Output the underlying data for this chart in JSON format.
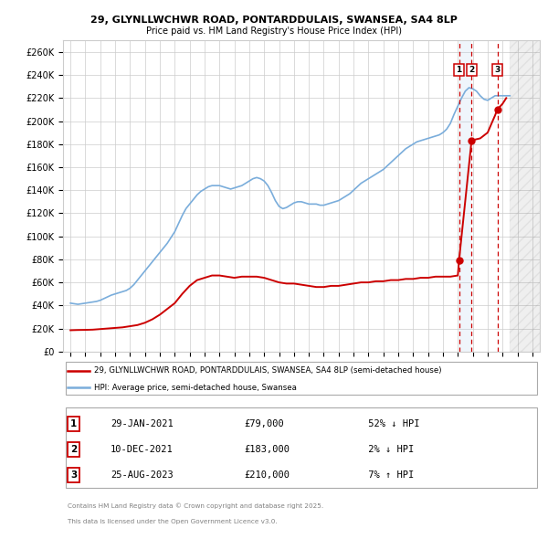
{
  "title_line1": "29, GLYNLLWCHWR ROAD, PONTARDDULAIS, SWANSEA, SA4 8LP",
  "title_line2": "Price paid vs. HM Land Registry's House Price Index (HPI)",
  "ylim": [
    0,
    270000
  ],
  "yticks": [
    0,
    20000,
    40000,
    60000,
    80000,
    100000,
    120000,
    140000,
    160000,
    180000,
    200000,
    220000,
    240000,
    260000
  ],
  "ytick_labels": [
    "£0",
    "£20K",
    "£40K",
    "£60K",
    "£80K",
    "£100K",
    "£120K",
    "£140K",
    "£160K",
    "£180K",
    "£200K",
    "£220K",
    "£240K",
    "£260K"
  ],
  "xmin": 1994.5,
  "xmax": 2026.5,
  "hpi_color": "#7aaddb",
  "price_color": "#cc0000",
  "vline_color": "#cc0000",
  "transactions": [
    {
      "date": "29-JAN-2021",
      "price": 79000,
      "x": 2021.08,
      "pct": "52%",
      "dir": "↓",
      "label": "1"
    },
    {
      "date": "10-DEC-2021",
      "price": 183000,
      "x": 2021.92,
      "pct": "2%",
      "dir": "↓",
      "label": "2"
    },
    {
      "date": "25-AUG-2023",
      "price": 210000,
      "x": 2023.65,
      "pct": "7%",
      "dir": "↑",
      "label": "3"
    }
  ],
  "legend_line1": "29, GLYNLLWCHWR ROAD, PONTARDDULAIS, SWANSEA, SA4 8LP (semi-detached house)",
  "legend_line2": "HPI: Average price, semi-detached house, Swansea",
  "footer1": "Contains HM Land Registry data © Crown copyright and database right 2025.",
  "footer2": "This data is licensed under the Open Government Licence v3.0.",
  "hpi_data": {
    "years": [
      1995.0,
      1995.25,
      1995.5,
      1995.75,
      1996.0,
      1996.25,
      1996.5,
      1996.75,
      1997.0,
      1997.25,
      1997.5,
      1997.75,
      1998.0,
      1998.25,
      1998.5,
      1998.75,
      1999.0,
      1999.25,
      1999.5,
      1999.75,
      2000.0,
      2000.25,
      2000.5,
      2000.75,
      2001.0,
      2001.25,
      2001.5,
      2001.75,
      2002.0,
      2002.25,
      2002.5,
      2002.75,
      2003.0,
      2003.25,
      2003.5,
      2003.75,
      2004.0,
      2004.25,
      2004.5,
      2004.75,
      2005.0,
      2005.25,
      2005.5,
      2005.75,
      2006.0,
      2006.25,
      2006.5,
      2006.75,
      2007.0,
      2007.25,
      2007.5,
      2007.75,
      2008.0,
      2008.25,
      2008.5,
      2008.75,
      2009.0,
      2009.25,
      2009.5,
      2009.75,
      2010.0,
      2010.25,
      2010.5,
      2010.75,
      2011.0,
      2011.25,
      2011.5,
      2011.75,
      2012.0,
      2012.25,
      2012.5,
      2012.75,
      2013.0,
      2013.25,
      2013.5,
      2013.75,
      2014.0,
      2014.25,
      2014.5,
      2014.75,
      2015.0,
      2015.25,
      2015.5,
      2015.75,
      2016.0,
      2016.25,
      2016.5,
      2016.75,
      2017.0,
      2017.25,
      2017.5,
      2017.75,
      2018.0,
      2018.25,
      2018.5,
      2018.75,
      2019.0,
      2019.25,
      2019.5,
      2019.75,
      2020.0,
      2020.25,
      2020.5,
      2020.75,
      2021.0,
      2021.25,
      2021.5,
      2021.75,
      2022.0,
      2022.25,
      2022.5,
      2022.75,
      2023.0,
      2023.25,
      2023.5,
      2023.75,
      2024.0,
      2024.25,
      2024.5
    ],
    "values": [
      42000,
      41500,
      41000,
      41500,
      42000,
      42500,
      43000,
      43500,
      44500,
      46000,
      47500,
      49000,
      50000,
      51000,
      52000,
      53000,
      55000,
      58000,
      62000,
      66000,
      70000,
      74000,
      78000,
      82000,
      86000,
      90000,
      94000,
      99000,
      104000,
      111000,
      118000,
      124000,
      128000,
      132000,
      136000,
      139000,
      141000,
      143000,
      144000,
      144000,
      144000,
      143000,
      142000,
      141000,
      142000,
      143000,
      144000,
      146000,
      148000,
      150000,
      151000,
      150000,
      148000,
      144000,
      138000,
      131000,
      126000,
      124000,
      125000,
      127000,
      129000,
      130000,
      130000,
      129000,
      128000,
      128000,
      128000,
      127000,
      127000,
      128000,
      129000,
      130000,
      131000,
      133000,
      135000,
      137000,
      140000,
      143000,
      146000,
      148000,
      150000,
      152000,
      154000,
      156000,
      158000,
      161000,
      164000,
      167000,
      170000,
      173000,
      176000,
      178000,
      180000,
      182000,
      183000,
      184000,
      185000,
      186000,
      187000,
      188000,
      190000,
      193000,
      198000,
      206000,
      213000,
      220000,
      226000,
      229000,
      228000,
      226000,
      222000,
      219000,
      218000,
      220000,
      222000,
      222000,
      222000,
      222000,
      222000
    ]
  },
  "price_data": {
    "years": [
      1995.0,
      1995.5,
      1996.0,
      1996.5,
      1997.0,
      1997.5,
      1998.0,
      1998.5,
      1999.0,
      1999.5,
      2000.0,
      2000.5,
      2001.0,
      2001.5,
      2002.0,
      2002.5,
      2003.0,
      2003.5,
      2004.0,
      2004.5,
      2005.0,
      2005.5,
      2006.0,
      2006.5,
      2007.0,
      2007.5,
      2008.0,
      2008.5,
      2009.0,
      2009.5,
      2010.0,
      2010.5,
      2011.0,
      2011.5,
      2012.0,
      2012.5,
      2013.0,
      2013.5,
      2014.0,
      2014.5,
      2015.0,
      2015.5,
      2016.0,
      2016.5,
      2017.0,
      2017.5,
      2018.0,
      2018.5,
      2019.0,
      2019.5,
      2020.0,
      2020.5,
      2021.0,
      2021.08,
      2021.92,
      2022.0,
      2022.5,
      2023.0,
      2023.5,
      2023.65,
      2024.0,
      2024.25
    ],
    "values": [
      18500,
      18700,
      18800,
      19000,
      19500,
      20000,
      20500,
      21000,
      22000,
      23000,
      25000,
      28000,
      32000,
      37000,
      42000,
      50000,
      57000,
      62000,
      64000,
      66000,
      66000,
      65000,
      64000,
      65000,
      65000,
      65000,
      64000,
      62000,
      60000,
      59000,
      59000,
      58000,
      57000,
      56000,
      56000,
      57000,
      57000,
      58000,
      59000,
      60000,
      60000,
      61000,
      61000,
      62000,
      62000,
      63000,
      63000,
      64000,
      64000,
      65000,
      65000,
      65000,
      66000,
      79000,
      183000,
      183500,
      185000,
      190000,
      205000,
      210000,
      215000,
      220000
    ]
  },
  "shade_start": 2021.0,
  "shade_end": 2021.92,
  "future_start": 2024.5,
  "current_year": 2025.0
}
